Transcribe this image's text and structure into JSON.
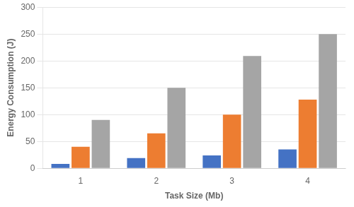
{
  "chart_data": {
    "type": "bar",
    "xlabel": "Task Size (Mb)",
    "ylabel": "Energy Consumption (J)",
    "categories": [
      1,
      2,
      3,
      4
    ],
    "series": [
      {
        "color": "#4472C4",
        "values": [
          8,
          19,
          24,
          35
        ]
      },
      {
        "color": "#ED7D31",
        "values": [
          40,
          65,
          100,
          128
        ]
      },
      {
        "color": "#A5A5A5",
        "values": [
          90,
          150,
          209,
          250
        ]
      }
    ],
    "ylim": [
      0,
      300
    ],
    "yticks": [
      0,
      50,
      100,
      150,
      200,
      250,
      300
    ],
    "grid": true
  }
}
